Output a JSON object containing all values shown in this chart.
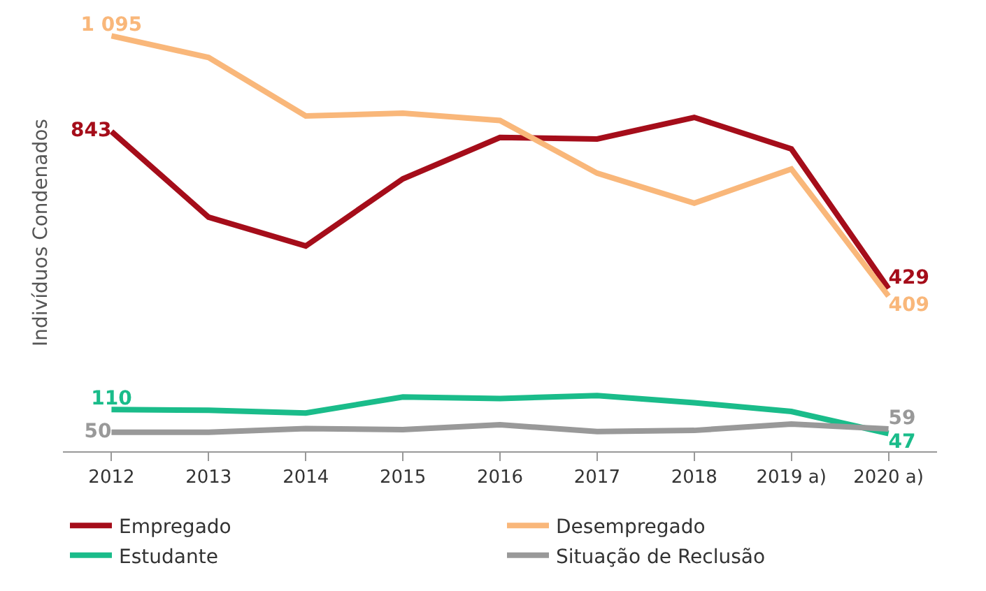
{
  "chart_data": {
    "type": "line",
    "ylabel": "Indivíduos Condenados",
    "categories": [
      "2012",
      "2013",
      "2014",
      "2015",
      "2016",
      "2017",
      "2018",
      "2019 a)",
      "2020 a)"
    ],
    "tick_labels": "x",
    "grid": false,
    "legend": "bottom",
    "marker": "none",
    "line_style": "solid",
    "series": [
      {
        "name": "Empregado",
        "color": "#a50d1a",
        "values": [
          843,
          617,
          541,
          718,
          827,
          823,
          880,
          797,
          429
        ],
        "value_labels": [
          "843",
          null,
          null,
          null,
          null,
          null,
          null,
          null,
          "429"
        ]
      },
      {
        "name": "Desempregado",
        "color": "#f9b77a",
        "values": [
          1095,
          1038,
          884,
          891,
          872,
          733,
          654,
          744,
          409
        ],
        "value_labels": [
          "1 095",
          null,
          null,
          null,
          null,
          null,
          null,
          null,
          "409"
        ]
      },
      {
        "name": "Estudante",
        "color": "#1abc8a",
        "values": [
          110,
          108,
          101,
          143,
          139,
          147,
          128,
          105,
          47
        ],
        "value_labels": [
          "110",
          null,
          null,
          null,
          null,
          null,
          null,
          null,
          "47"
        ]
      },
      {
        "name": "Situação de Reclusão",
        "color": "#999999",
        "values": [
          50,
          50,
          60,
          57,
          70,
          52,
          55,
          72,
          59
        ],
        "value_labels": [
          "50",
          null,
          null,
          null,
          null,
          null,
          null,
          null,
          "59"
        ]
      }
    ]
  }
}
